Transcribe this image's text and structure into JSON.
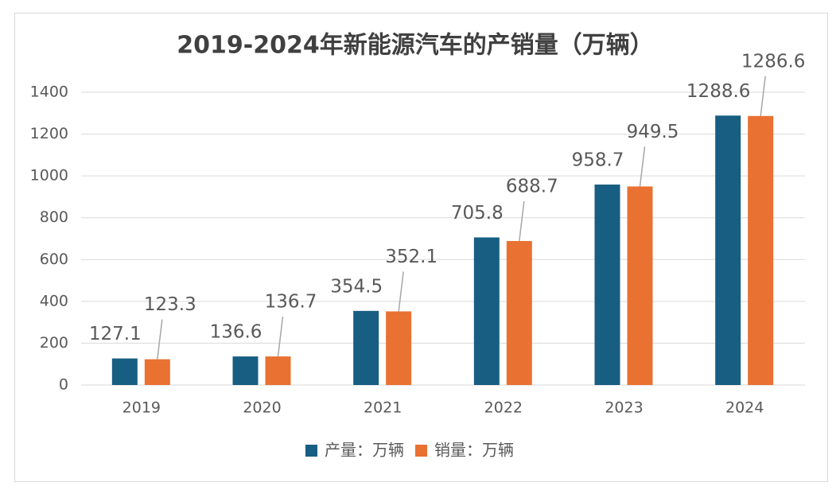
{
  "chart_data": {
    "type": "bar",
    "title": "2019-2024年新能源汽车的产销量（万辆）",
    "categories": [
      "2019",
      "2020",
      "2021",
      "2022",
      "2023",
      "2024"
    ],
    "series": [
      {
        "name": "产量：万辆",
        "color": "#175e82",
        "values": [
          127.1,
          136.6,
          354.5,
          705.8,
          958.7,
          1288.6
        ]
      },
      {
        "name": "销量：万辆",
        "color": "#e97132",
        "values": [
          123.3,
          136.7,
          352.1,
          688.7,
          949.5,
          1286.6
        ]
      }
    ],
    "ylim": [
      0,
      1400
    ],
    "yticks": [
      0,
      200,
      400,
      600,
      800,
      1000,
      1200,
      1400
    ],
    "grid": true,
    "legend": "bottom"
  }
}
